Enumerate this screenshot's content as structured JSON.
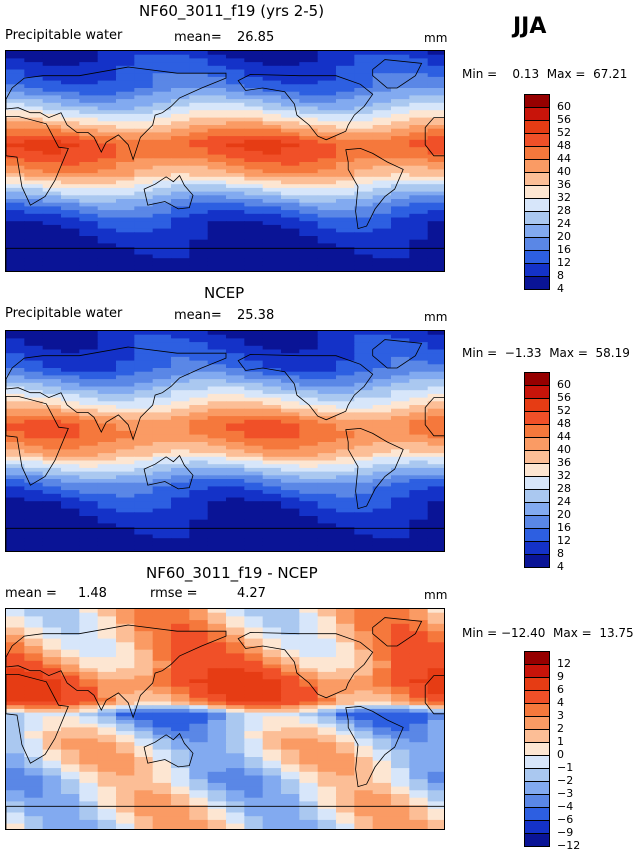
{
  "season": "JJA",
  "panels": [
    {
      "title": "NF60_3011_f19 (yrs 2-5)",
      "left_label": "Precipitable water",
      "stat1_name": "mean=",
      "stat1_value": "26.85",
      "stat2_name": "",
      "stat2_value": "",
      "units": "mm",
      "minmax": "Min =    0.13  Max =  67.21",
      "colorbar_labels": [
        "60",
        "56",
        "52",
        "48",
        "44",
        "40",
        "36",
        "32",
        "28",
        "24",
        "20",
        "16",
        "12",
        "8",
        "4"
      ],
      "colorbar_colors": [
        "#960000",
        "#c8140a",
        "#e63c14",
        "#f05028",
        "#f5783c",
        "#fa9b64",
        "#fcbe96",
        "#fde6d2",
        "#d7e6fa",
        "#aac8f0",
        "#82aaf0",
        "#5a87e6",
        "#2d5fe1",
        "#1432c8",
        "#0a1496"
      ]
    },
    {
      "title": "NCEP",
      "left_label": "Precipitable water",
      "stat1_name": "mean=",
      "stat1_value": "25.38",
      "stat2_name": "",
      "stat2_value": "",
      "units": "mm",
      "minmax": "Min =  −1.33  Max =  58.19",
      "colorbar_labels": [
        "60",
        "56",
        "52",
        "48",
        "44",
        "40",
        "36",
        "32",
        "28",
        "24",
        "20",
        "16",
        "12",
        "8",
        "4"
      ],
      "colorbar_colors": [
        "#960000",
        "#c8140a",
        "#e63c14",
        "#f05028",
        "#f5783c",
        "#fa9b64",
        "#fcbe96",
        "#fde6d2",
        "#d7e6fa",
        "#aac8f0",
        "#82aaf0",
        "#5a87e6",
        "#2d5fe1",
        "#1432c8",
        "#0a1496"
      ]
    },
    {
      "title": "NF60_3011_f19 - NCEP",
      "left_label": "",
      "stat1_name": "mean =",
      "stat1_value": "1.48",
      "stat2_name": "rmse =",
      "stat2_value": "4.27",
      "units": "mm",
      "minmax": "Min = −12.40  Max =  13.75",
      "colorbar_labels": [
        "12",
        "9",
        "6",
        "4",
        "3",
        "2",
        "1",
        "0",
        "−1",
        "−2",
        "−3",
        "−4",
        "−6",
        "−9",
        "−12"
      ],
      "colorbar_colors": [
        "#960000",
        "#c8140a",
        "#e63c14",
        "#f05028",
        "#f5783c",
        "#fa9b64",
        "#fcbe96",
        "#fde6d2",
        "#d7e6fa",
        "#aac8f0",
        "#82aaf0",
        "#5a87e6",
        "#2d5fe1",
        "#1432c8",
        "#0a1496"
      ]
    }
  ],
  "chart_data": [
    {
      "type": "heatmap",
      "title": "NF60_3011_f19 (yrs 2-5)",
      "variable": "Precipitable water",
      "units": "mm",
      "mean": 26.85,
      "min": 0.13,
      "max": 67.21,
      "contour_levels": [
        4,
        8,
        12,
        16,
        20,
        24,
        28,
        32,
        36,
        40,
        44,
        48,
        52,
        56,
        60
      ],
      "x_range": [
        0,
        360
      ],
      "y_range": [
        -90,
        90
      ],
      "bands_by_latitude": {
        "lat": [
          90,
          60,
          45,
          30,
          15,
          5,
          -10,
          -20,
          -35,
          -50,
          -70,
          -90
        ],
        "value": [
          8,
          16,
          26,
          38,
          50,
          48,
          40,
          30,
          18,
          10,
          6,
          2
        ]
      }
    },
    {
      "type": "heatmap",
      "title": "NCEP",
      "variable": "Precipitable water",
      "units": "mm",
      "mean": 25.38,
      "min": -1.33,
      "max": 58.19,
      "contour_levels": [
        4,
        8,
        12,
        16,
        20,
        24,
        28,
        32,
        36,
        40,
        44,
        48,
        52,
        56,
        60
      ],
      "x_range": [
        0,
        360
      ],
      "y_range": [
        -90,
        90
      ],
      "bands_by_latitude": {
        "lat": [
          90,
          60,
          45,
          30,
          15,
          5,
          -10,
          -20,
          -35,
          -50,
          -70,
          -90
        ],
        "value": [
          8,
          14,
          24,
          34,
          46,
          46,
          38,
          28,
          16,
          10,
          6,
          2
        ]
      }
    },
    {
      "type": "heatmap",
      "title": "NF60_3011_f19 - NCEP",
      "units": "mm",
      "mean": 1.48,
      "rmse": 4.27,
      "min": -12.4,
      "max": 13.75,
      "contour_levels": [
        -12,
        -9,
        -6,
        -4,
        -3,
        -2,
        -1,
        0,
        1,
        2,
        3,
        4,
        6,
        9,
        12
      ],
      "x_range": [
        0,
        360
      ],
      "y_range": [
        -90,
        90
      ],
      "bands_by_latitude": {
        "lat": [
          90,
          60,
          45,
          30,
          15,
          5,
          -10,
          -20,
          -35,
          -50,
          -70,
          -90
        ],
        "value": [
          1,
          2,
          3,
          5,
          4,
          -3,
          -1,
          0,
          0,
          -1,
          0,
          0
        ]
      }
    }
  ]
}
